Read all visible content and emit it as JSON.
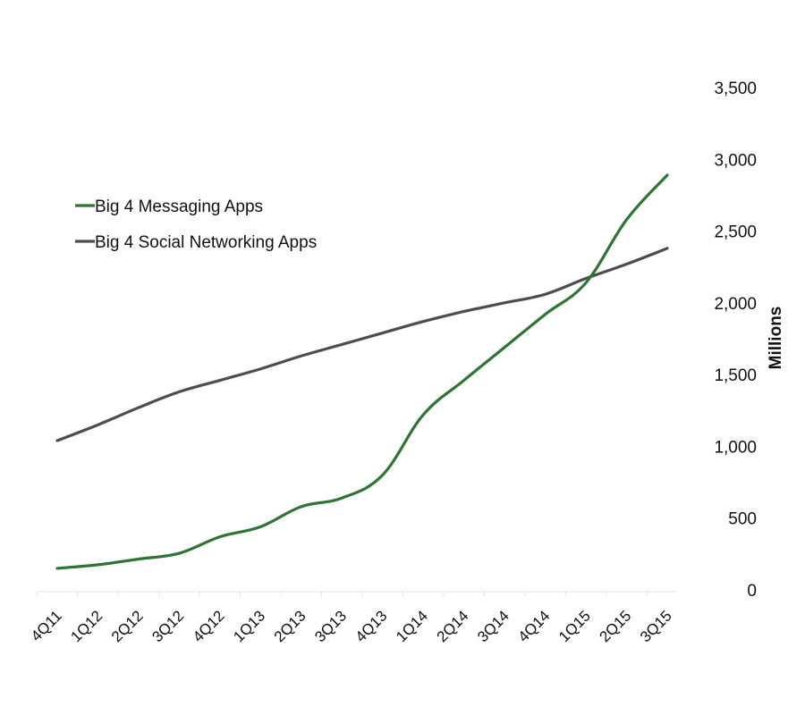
{
  "chart_data": {
    "type": "line",
    "title": "",
    "xlabel": "",
    "ylabel": "Millions",
    "ylim": [
      0,
      3500
    ],
    "y_ticks": [
      0,
      500,
      1000,
      1500,
      2000,
      2500,
      3000,
      3500
    ],
    "y_tick_labels": [
      "0",
      "500",
      "1,000",
      "1,500",
      "2,000",
      "2,500",
      "3,000",
      "3,500"
    ],
    "y_axis_side": "right",
    "grid": false,
    "legend_position": "upper-left",
    "categories": [
      "4Q11",
      "1Q12",
      "2Q12",
      "3Q12",
      "4Q12",
      "1Q13",
      "2Q13",
      "3Q13",
      "4Q13",
      "1Q14",
      "2Q14",
      "3Q14",
      "4Q14",
      "1Q15",
      "2Q15",
      "3Q15"
    ],
    "series": [
      {
        "name": "Big 4 Messaging Apps",
        "color": "#2e7534",
        "values": [
          150,
          175,
          215,
          255,
          370,
          440,
          580,
          640,
          800,
          1220,
          1460,
          1690,
          1920,
          2140,
          2580,
          2890
        ]
      },
      {
        "name": "Big 4 Social Networking Apps",
        "color": "#4d4d4d",
        "values": [
          1040,
          1150,
          1270,
          1380,
          1460,
          1540,
          1630,
          1710,
          1790,
          1870,
          1940,
          2000,
          2060,
          2170,
          2270,
          2380
        ]
      }
    ]
  }
}
